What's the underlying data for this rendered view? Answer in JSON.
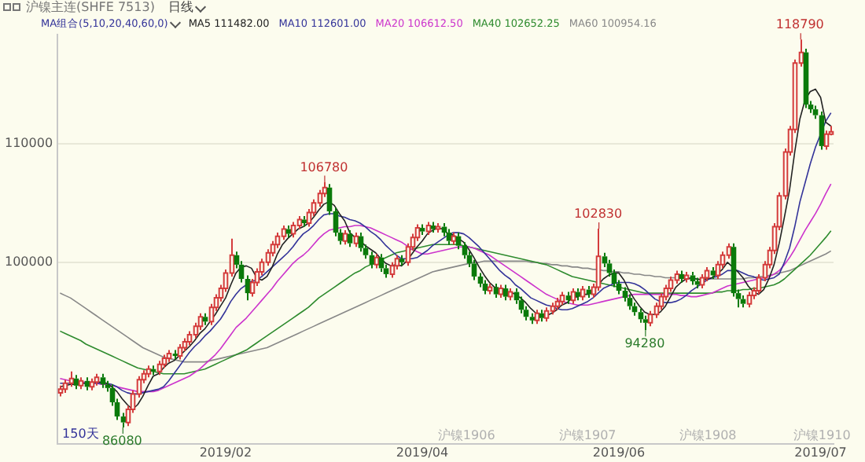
{
  "chart_data": {
    "type": "candlestick",
    "title": "沪镍主连(SHFE 7513)",
    "subtitle": "日线",
    "legend_title": "MA组合(5,10,20,40,60,0)",
    "legend": "top left",
    "grid": "y",
    "ylim": [
      84700,
      119200
    ],
    "yticks": [
      100000,
      110000
    ],
    "categories": [
      null,
      null,
      null,
      null,
      null,
      null,
      null,
      null,
      null,
      null,
      null,
      null,
      null,
      null,
      null,
      null,
      null,
      null,
      null,
      null,
      null,
      null,
      null,
      null,
      null,
      null,
      null,
      null,
      null,
      null,
      null,
      null,
      "2019/02",
      null,
      null,
      null,
      null,
      null,
      null,
      null,
      null,
      null,
      null,
      null,
      null,
      null,
      null,
      null,
      null,
      null,
      null,
      null,
      null,
      null,
      null,
      null,
      null,
      null,
      null,
      null,
      null,
      null,
      null,
      null,
      null,
      null,
      null,
      null,
      null,
      null,
      "2019/04",
      null,
      null,
      null,
      null,
      null,
      null,
      null,
      null,
      null,
      null,
      null,
      null,
      null,
      null,
      null,
      null,
      null,
      null,
      null,
      null,
      null,
      null,
      null,
      null,
      null,
      null,
      null,
      null,
      null,
      null,
      null,
      null,
      null,
      null,
      null,
      null,
      null,
      "2019/06",
      null,
      null,
      null,
      null,
      null,
      null,
      null,
      null,
      null,
      null,
      null,
      null,
      null,
      null,
      null,
      null,
      null,
      null,
      null,
      null,
      null,
      null,
      null,
      null,
      null,
      null,
      null,
      null,
      null,
      null,
      null,
      null,
      null,
      null,
      null,
      null,
      null,
      null,
      "2019/07",
      null,
      null
    ],
    "ohlc": [
      [
        89000,
        89600,
        88700,
        89300
      ],
      [
        89300,
        90100,
        89000,
        89800
      ],
      [
        89800,
        90800,
        89500,
        90200
      ],
      [
        90200,
        90500,
        89300,
        89600
      ],
      [
        89600,
        90300,
        89300,
        90000
      ],
      [
        90000,
        90300,
        89200,
        89500
      ],
      [
        89500,
        90200,
        89200,
        89900
      ],
      [
        89900,
        90600,
        89600,
        90300
      ],
      [
        90300,
        90600,
        89400,
        89700
      ],
      [
        89700,
        90000,
        89100,
        89400
      ],
      [
        89400,
        89700,
        87900,
        88200
      ],
      [
        88200,
        88500,
        86700,
        87000
      ],
      [
        87000,
        87300,
        86080,
        86500
      ],
      [
        86500,
        87900,
        86200,
        87600
      ],
      [
        87600,
        89200,
        87300,
        88900
      ],
      [
        88900,
        90400,
        88600,
        90100
      ],
      [
        90100,
        90900,
        89800,
        90600
      ],
      [
        90600,
        91300,
        90300,
        91000
      ],
      [
        91000,
        91300,
        90500,
        90800
      ],
      [
        90800,
        91700,
        90500,
        91400
      ],
      [
        91400,
        92200,
        91100,
        91900
      ],
      [
        91900,
        92600,
        91600,
        92300
      ],
      [
        92300,
        92600,
        91800,
        92100
      ],
      [
        92100,
        93100,
        91800,
        92800
      ],
      [
        92800,
        93600,
        92500,
        93300
      ],
      [
        93300,
        94200,
        93000,
        93900
      ],
      [
        93900,
        94900,
        93600,
        94600
      ],
      [
        94600,
        95700,
        94300,
        95400
      ],
      [
        95400,
        95700,
        94700,
        95000
      ],
      [
        95000,
        96500,
        94700,
        96200
      ],
      [
        96200,
        97300,
        95900,
        97000
      ],
      [
        97000,
        98100,
        96700,
        97800
      ],
      [
        97800,
        99400,
        97500,
        99100
      ],
      [
        99100,
        102000,
        98800,
        100600
      ],
      [
        100600,
        100900,
        99500,
        99800
      ],
      [
        99800,
        100100,
        98300,
        98600
      ],
      [
        98600,
        98900,
        96800,
        97400
      ],
      [
        97400,
        98600,
        97100,
        98300
      ],
      [
        98300,
        99500,
        98000,
        99200
      ],
      [
        99200,
        100300,
        98900,
        100000
      ],
      [
        100000,
        101100,
        99700,
        100800
      ],
      [
        100800,
        101800,
        100500,
        101500
      ],
      [
        101500,
        102500,
        101200,
        102200
      ],
      [
        102200,
        103100,
        101900,
        102800
      ],
      [
        102800,
        103100,
        102100,
        102400
      ],
      [
        102400,
        103400,
        102100,
        103100
      ],
      [
        103100,
        103900,
        102800,
        103600
      ],
      [
        103600,
        103900,
        103000,
        103300
      ],
      [
        103300,
        104500,
        103000,
        104200
      ],
      [
        104200,
        105300,
        103900,
        105000
      ],
      [
        105000,
        106100,
        104700,
        105800
      ],
      [
        105800,
        106780,
        105500,
        106300
      ],
      [
        106300,
        106600,
        104000,
        104300
      ],
      [
        104300,
        104600,
        102200,
        102500
      ],
      [
        102500,
        102800,
        101500,
        101800
      ],
      [
        101800,
        102700,
        101500,
        102400
      ],
      [
        102400,
        102700,
        101300,
        101600
      ],
      [
        101600,
        102500,
        101300,
        102200
      ],
      [
        102200,
        102500,
        100900,
        101200
      ],
      [
        101200,
        101500,
        100300,
        100600
      ],
      [
        100600,
        100900,
        99500,
        99800
      ],
      [
        99800,
        100700,
        99500,
        100400
      ],
      [
        100400,
        100700,
        99200,
        99500
      ],
      [
        99500,
        99800,
        98700,
        99000
      ],
      [
        99000,
        100000,
        98700,
        99700
      ],
      [
        99700,
        100600,
        99400,
        100300
      ],
      [
        100300,
        100600,
        99700,
        100000
      ],
      [
        100000,
        101600,
        99700,
        101300
      ],
      [
        101300,
        102400,
        101000,
        102100
      ],
      [
        102100,
        103200,
        101800,
        102900
      ],
      [
        102900,
        103200,
        102300,
        102600
      ],
      [
        102600,
        103400,
        102300,
        103100
      ],
      [
        103100,
        103400,
        102500,
        102800
      ],
      [
        102800,
        103300,
        102500,
        103000
      ],
      [
        103000,
        103300,
        102200,
        102500
      ],
      [
        102500,
        102800,
        101500,
        101800
      ],
      [
        101800,
        102500,
        101500,
        102200
      ],
      [
        102200,
        102500,
        101100,
        101400
      ],
      [
        101400,
        101700,
        100300,
        100600
      ],
      [
        100600,
        100900,
        99600,
        99900
      ],
      [
        99900,
        100200,
        98500,
        98800
      ],
      [
        98800,
        99100,
        97900,
        98200
      ],
      [
        98200,
        98500,
        97300,
        97600
      ],
      [
        97600,
        98200,
        97300,
        97900
      ],
      [
        97900,
        98200,
        97000,
        97300
      ],
      [
        97300,
        98100,
        97000,
        97800
      ],
      [
        97800,
        98100,
        96800,
        97100
      ],
      [
        97100,
        97800,
        96800,
        97500
      ],
      [
        97500,
        97800,
        96500,
        96800
      ],
      [
        96800,
        97100,
        95700,
        96000
      ],
      [
        96000,
        96300,
        95100,
        95400
      ],
      [
        95400,
        95700,
        94800,
        95100
      ],
      [
        95100,
        96000,
        94800,
        95700
      ],
      [
        95700,
        96000,
        95000,
        95300
      ],
      [
        95300,
        96200,
        95000,
        95900
      ],
      [
        95900,
        96600,
        95600,
        96300
      ],
      [
        96300,
        97000,
        96000,
        96700
      ],
      [
        96700,
        97500,
        96400,
        97200
      ],
      [
        97200,
        97500,
        96500,
        96800
      ],
      [
        96800,
        97800,
        96500,
        97500
      ],
      [
        97500,
        97800,
        96800,
        97100
      ],
      [
        97100,
        98000,
        96800,
        97700
      ],
      [
        97700,
        98000,
        97000,
        97300
      ],
      [
        97300,
        98200,
        97000,
        97900
      ],
      [
        97900,
        102830,
        97600,
        100500
      ],
      [
        100500,
        100800,
        99600,
        99900
      ],
      [
        99900,
        100200,
        98800,
        99100
      ],
      [
        99100,
        99400,
        97900,
        98200
      ],
      [
        98200,
        98500,
        97300,
        97600
      ],
      [
        97600,
        97900,
        96700,
        97000
      ],
      [
        97000,
        97300,
        96000,
        96300
      ],
      [
        96300,
        96600,
        95500,
        95800
      ],
      [
        95800,
        96100,
        94900,
        95200
      ],
      [
        95200,
        95500,
        94280,
        94900
      ],
      [
        94900,
        95900,
        94600,
        95600
      ],
      [
        95600,
        96600,
        95300,
        96300
      ],
      [
        96300,
        97400,
        96000,
        97100
      ],
      [
        97100,
        98100,
        96800,
        97800
      ],
      [
        97800,
        98800,
        97500,
        98500
      ],
      [
        98500,
        99300,
        98200,
        99000
      ],
      [
        99000,
        99300,
        98300,
        98600
      ],
      [
        98600,
        99200,
        98300,
        98900
      ],
      [
        98900,
        99200,
        98100,
        98400
      ],
      [
        98400,
        98700,
        97800,
        98100
      ],
      [
        98100,
        99000,
        97800,
        98700
      ],
      [
        98700,
        99600,
        98400,
        99300
      ],
      [
        99300,
        99600,
        98600,
        98900
      ],
      [
        98900,
        100100,
        98600,
        99800
      ],
      [
        99800,
        100900,
        99500,
        100600
      ],
      [
        100600,
        101600,
        100300,
        101300
      ],
      [
        101300,
        101600,
        97100,
        97400
      ],
      [
        97400,
        97700,
        96200,
        96900
      ],
      [
        96900,
        97200,
        96200,
        96500
      ],
      [
        96500,
        97500,
        96200,
        97200
      ],
      [
        97200,
        97900,
        96900,
        97600
      ],
      [
        97600,
        99000,
        97300,
        98700
      ],
      [
        98700,
        100100,
        98400,
        99800
      ],
      [
        99800,
        101300,
        99500,
        101000
      ],
      [
        101000,
        103300,
        100700,
        103000
      ],
      [
        103000,
        105900,
        102700,
        105600
      ],
      [
        105600,
        109600,
        105300,
        109300
      ],
      [
        109300,
        111500,
        109000,
        111200
      ],
      [
        111200,
        117100,
        110900,
        116800
      ],
      [
        116800,
        118790,
        116500,
        117700
      ],
      [
        117700,
        118000,
        113000,
        113300
      ],
      [
        113300,
        113600,
        112600,
        112900
      ],
      [
        112900,
        113200,
        112100,
        112400
      ],
      [
        112400,
        112700,
        109500,
        109800
      ],
      [
        109800,
        111100,
        109500,
        110800
      ],
      [
        110800,
        111500,
        110700,
        111000
      ]
    ],
    "series": [
      {
        "name": "MA5 111482.00",
        "type": "line",
        "color": "#222222",
        "values": [
          89500,
          89600,
          89700,
          89700,
          89800,
          89800,
          89800,
          89900,
          89900,
          89800,
          89500,
          89100,
          88500,
          88000,
          87600,
          88000,
          88700,
          89600,
          90400,
          90600,
          91100,
          91500,
          91700,
          92100,
          92500,
          92900,
          93400,
          94000,
          94400,
          95000,
          95600,
          96300,
          97000,
          98100,
          99100,
          99600,
          99700,
          99500,
          98700,
          98500,
          98800,
          99600,
          100700,
          101500,
          102000,
          102400,
          102800,
          103000,
          103300,
          103800,
          104400,
          104900,
          105100,
          104800,
          104100,
          103500,
          102500,
          102100,
          101800,
          101400,
          101100,
          100800,
          100300,
          99900,
          99700,
          99800,
          99700,
          100100,
          100700,
          101300,
          101800,
          102400,
          102700,
          102900,
          102800,
          102400,
          102300,
          102000,
          101700,
          101100,
          100400,
          99600,
          98900,
          98300,
          97900,
          97800,
          97500,
          97500,
          97300,
          97000,
          96600,
          96100,
          95700,
          95500,
          95500,
          95700,
          96000,
          96400,
          96600,
          97000,
          97100,
          97300,
          97300,
          97500,
          98100,
          98600,
          98900,
          99100,
          99100,
          98500,
          97600,
          96900,
          96300,
          95800,
          95600,
          95600,
          95800,
          96300,
          97100,
          97900,
          98300,
          98600,
          98700,
          98600,
          98500,
          98600,
          98700,
          99000,
          99400,
          100000,
          99600,
          99200,
          98700,
          98000,
          97500,
          97300,
          97700,
          98600,
          99800,
          101600,
          103800,
          106100,
          109300,
          112100,
          113700,
          114400,
          114600,
          113900,
          111800,
          111482
        ]
      },
      {
        "name": "MA10 112601.00",
        "type": "line",
        "color": "#333399",
        "values": [
          89800,
          89800,
          89800,
          89800,
          89800,
          89800,
          89800,
          89800,
          89800,
          89800,
          89700,
          89500,
          89200,
          89000,
          88900,
          88900,
          89000,
          89100,
          89200,
          89300,
          89500,
          90000,
          90600,
          91200,
          91800,
          92400,
          92900,
          93300,
          93800,
          94200,
          94700,
          95200,
          95900,
          96700,
          97300,
          97800,
          98100,
          98400,
          98500,
          98800,
          99200,
          99600,
          100000,
          100400,
          100800,
          101300,
          101900,
          102400,
          102700,
          103100,
          103600,
          104000,
          104100,
          104100,
          103900,
          103800,
          103600,
          103500,
          103300,
          103000,
          102600,
          102300,
          101900,
          101400,
          101000,
          100600,
          100300,
          100300,
          100300,
          100400,
          100700,
          101000,
          101400,
          101700,
          102000,
          102300,
          102500,
          102500,
          102400,
          102100,
          101700,
          101300,
          100800,
          100300,
          99800,
          99300,
          98900,
          98600,
          98100,
          97800,
          97400,
          97000,
          96800,
          96600,
          96400,
          96300,
          96100,
          96000,
          96000,
          96100,
          96300,
          96500,
          96700,
          97000,
          97400,
          97800,
          98000,
          98200,
          98300,
          98300,
          98300,
          98200,
          98000,
          97700,
          97300,
          96900,
          96700,
          96600,
          96600,
          96700,
          96900,
          97200,
          97600,
          97900,
          98200,
          98500,
          98700,
          98800,
          99000,
          99300,
          99300,
          99300,
          99100,
          98900,
          98800,
          98600,
          98500,
          98600,
          98700,
          99000,
          100000,
          101200,
          103000,
          105100,
          106700,
          108300,
          109700,
          110800,
          111900,
          112601
        ]
      },
      {
        "name": "MA20 106612.50",
        "type": "line",
        "color": "#cc33cc",
        "values": [
          90200,
          90100,
          90000,
          90000,
          89900,
          89900,
          89800,
          89800,
          89700,
          89700,
          89600,
          89500,
          89400,
          89300,
          89200,
          89100,
          89100,
          89100,
          89100,
          89200,
          89400,
          89600,
          89800,
          90000,
          90200,
          90400,
          90700,
          91000,
          91400,
          91800,
          92200,
          92700,
          93300,
          93900,
          94500,
          94900,
          95300,
          95800,
          96300,
          96800,
          97300,
          97800,
          98400,
          98900,
          99400,
          99900,
          100300,
          100600,
          101000,
          101500,
          102000,
          102400,
          102700,
          102800,
          102900,
          103000,
          103000,
          103100,
          103100,
          103000,
          102900,
          102700,
          102500,
          102300,
          102100,
          101900,
          101700,
          101400,
          101100,
          100900,
          100700,
          100700,
          100800,
          100900,
          101000,
          101100,
          101200,
          101300,
          101300,
          101300,
          101200,
          101000,
          100800,
          100600,
          100300,
          100000,
          99700,
          99400,
          99100,
          98800,
          98500,
          98200,
          97900,
          97600,
          97300,
          97100,
          96900,
          96700,
          96600,
          96500,
          96400,
          96400,
          96400,
          96500,
          96600,
          96700,
          96800,
          96900,
          97000,
          97100,
          97200,
          97300,
          97300,
          97300,
          97300,
          97300,
          97300,
          97300,
          97300,
          97300,
          97200,
          97200,
          97100,
          97100,
          97200,
          97300,
          97400,
          97600,
          97800,
          98000,
          98100,
          98200,
          98300,
          98400,
          98500,
          98600,
          98700,
          98800,
          99000,
          99300,
          99800,
          100400,
          101100,
          101900,
          102700,
          103400,
          104100,
          104900,
          105800,
          106612.5
        ]
      },
      {
        "name": "MA40 102652.25",
        "type": "line",
        "color": "#2e8b2e",
        "values": [
          94200,
          94000,
          93800,
          93600,
          93400,
          93100,
          92900,
          92700,
          92500,
          92300,
          92100,
          91900,
          91700,
          91500,
          91300,
          91100,
          91000,
          90900,
          90800,
          90700,
          90600,
          90600,
          90600,
          90600,
          90600,
          90700,
          90800,
          90900,
          91000,
          91200,
          91400,
          91600,
          91800,
          92000,
          92200,
          92400,
          92600,
          92900,
          93200,
          93500,
          93800,
          94100,
          94400,
          94700,
          95000,
          95300,
          95600,
          95900,
          96200,
          96600,
          97000,
          97300,
          97600,
          97900,
          98200,
          98500,
          98800,
          99100,
          99300,
          99600,
          99800,
          100000,
          100200,
          100400,
          100600,
          100800,
          100900,
          101000,
          101100,
          101200,
          101300,
          101400,
          101500,
          101500,
          101500,
          101500,
          101500,
          101500,
          101400,
          101300,
          101200,
          101100,
          101000,
          100900,
          100800,
          100700,
          100600,
          100500,
          100400,
          100300,
          100200,
          100100,
          100000,
          99900,
          99800,
          99600,
          99400,
          99200,
          99000,
          98800,
          98700,
          98600,
          98500,
          98400,
          98300,
          98200,
          98100,
          98000,
          97900,
          97800,
          97700,
          97600,
          97500,
          97400,
          97400,
          97400,
          97400,
          97400,
          97400,
          97400,
          97400,
          97400,
          97400,
          97400,
          97400,
          97400,
          97400,
          97500,
          97500,
          97600,
          97600,
          97600,
          97700,
          97700,
          97800,
          97800,
          97900,
          98000,
          98100,
          98300,
          98600,
          99000,
          99400,
          99800,
          100200,
          100600,
          101100,
          101600,
          102100,
          102652.25
        ]
      },
      {
        "name": "MA60 100954.16",
        "type": "line",
        "color": "#888888",
        "values": [
          97400,
          97200,
          97000,
          96700,
          96400,
          96100,
          95800,
          95500,
          95200,
          94900,
          94600,
          94300,
          94000,
          93700,
          93400,
          93100,
          92800,
          92600,
          92400,
          92200,
          92000,
          91900,
          91800,
          91700,
          91600,
          91600,
          91600,
          91600,
          91600,
          91700,
          91800,
          91900,
          92000,
          92100,
          92200,
          92300,
          92400,
          92500,
          92600,
          92700,
          92800,
          93000,
          93200,
          93400,
          93600,
          93800,
          94000,
          94200,
          94400,
          94600,
          94800,
          95000,
          95200,
          95400,
          95600,
          95800,
          96000,
          96200,
          96400,
          96600,
          96800,
          97000,
          97200,
          97400,
          97600,
          97800,
          98000,
          98200,
          98400,
          98600,
          98800,
          99000,
          99200,
          99300,
          99400,
          99500,
          99600,
          99700,
          99800,
          99900,
          100000,
          100000,
          100100,
          100100,
          100100,
          100100,
          100100,
          100100,
          100100,
          100100,
          100100,
          100000,
          100000,
          99900,
          99900,
          99800,
          99800,
          99700,
          99700,
          99600,
          99600,
          99500,
          99500,
          99400,
          99400,
          99300,
          99300,
          99200,
          99200,
          99100,
          99100,
          99000,
          99000,
          98900,
          98900,
          98800,
          98800,
          98700,
          98700,
          98700,
          98700,
          98600,
          98600,
          98600,
          98600,
          98600,
          98600,
          98600,
          98600,
          98600,
          98600,
          98600,
          98600,
          98700,
          98700,
          98800,
          98800,
          98900,
          99000,
          99100,
          99200,
          99300,
          99500,
          99700,
          99900,
          100100,
          100300,
          100500,
          100700,
          100954.16
        ]
      }
    ],
    "annotations": [
      "150天",
      "沪镍1906",
      "沪镍1907",
      "沪镍1908",
      "沪镍1910",
      {
        "text": "106780",
        "y": 106780
      },
      {
        "text": "86080",
        "y": 86080
      },
      {
        "text": "102830",
        "y": 102830
      },
      {
        "text": "94280",
        "y": 94280
      },
      {
        "text": "118790",
        "y": 118790
      }
    ]
  }
}
